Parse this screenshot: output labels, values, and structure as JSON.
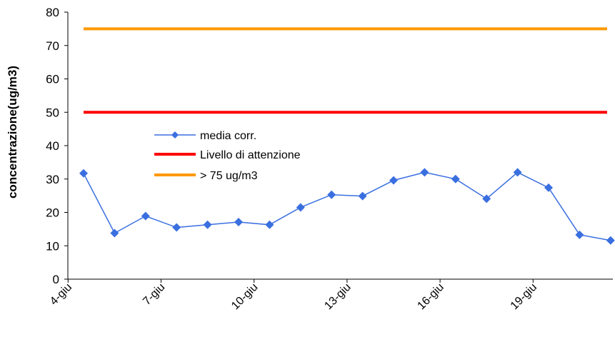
{
  "chart_data": {
    "type": "line",
    "title": "",
    "xlabel": "",
    "ylabel": "concentrazione(ug/m3)",
    "ylim": [
      0,
      80
    ],
    "yticks": [
      0,
      10,
      20,
      30,
      40,
      50,
      60,
      70,
      80
    ],
    "x_tick_labels": [
      "4-giu",
      "7-giu",
      "10-giu",
      "13-giu",
      "16-giu",
      "19-giu"
    ],
    "x_tick_days": [
      4,
      7,
      10,
      13,
      16,
      19
    ],
    "days": [
      4,
      5,
      6,
      7,
      8,
      9,
      10,
      11,
      12,
      13,
      14,
      15,
      16,
      17,
      18,
      19,
      20,
      21
    ],
    "grid": false,
    "legend_position": "center-left",
    "series": [
      {
        "name": "media corr.",
        "color": "#3a6fe0",
        "marker": "diamond",
        "values": [
          31.7,
          13.8,
          18.9,
          15.5,
          16.3,
          17.1,
          16.3,
          21.5,
          25.3,
          24.9,
          29.6,
          32.0,
          30.0,
          24.1,
          32.0,
          27.4,
          13.3,
          11.6
        ]
      },
      {
        "name": "Livello di attenzione",
        "color": "#ff0000",
        "marker": "none",
        "values": [
          50,
          50,
          50,
          50,
          50,
          50,
          50,
          50,
          50,
          50,
          50,
          50,
          50,
          50,
          50,
          50,
          50,
          50
        ]
      },
      {
        "name": "> 75 ug/m3",
        "color": "#ff9900",
        "marker": "none",
        "values": [
          75,
          75,
          75,
          75,
          75,
          75,
          75,
          75,
          75,
          75,
          75,
          75,
          75,
          75,
          75,
          75,
          75,
          75
        ]
      }
    ]
  }
}
